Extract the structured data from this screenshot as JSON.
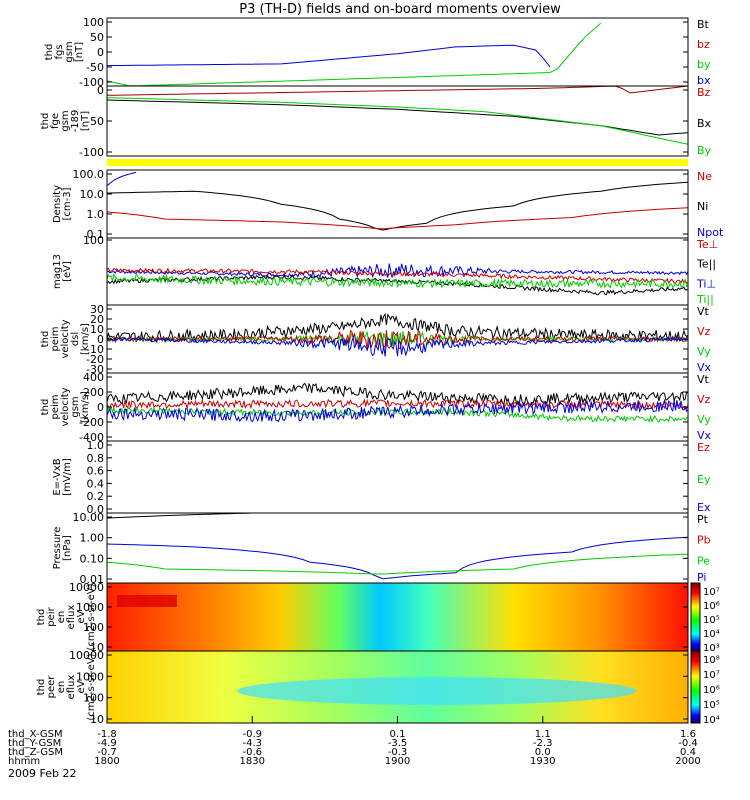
{
  "title": "P3 (TH-D) fields and on-board moments overview",
  "date_label": "2009 Feb 22",
  "colors": {
    "black": "#000000",
    "red": "#c80000",
    "green": "#00cc00",
    "blue": "#0000dd",
    "yellow": "#ffff00",
    "bz_red": "#a00000"
  },
  "footer": {
    "rows": [
      {
        "label": "thd_X-GSM",
        "values": [
          "-1.8",
          "-0.9",
          "0.1",
          "1.1",
          "1.6"
        ]
      },
      {
        "label": "thd_Y-GSM",
        "values": [
          "-4.9",
          "-4.3",
          "-3.5",
          "-2.3",
          "-0.4"
        ]
      },
      {
        "label": "thd_Z-GSM",
        "values": [
          "-0.7",
          "-0.6",
          "-0.3",
          "0.0",
          "0.4"
        ]
      },
      {
        "label": "hhmm",
        "values": [
          "1800",
          "1830",
          "1900",
          "1930",
          "2000"
        ]
      }
    ]
  },
  "chart_data": [
    {
      "type": "line",
      "ylabel": [
        "thd",
        "fgs",
        "gsm",
        "[nT]"
      ],
      "yticks": [
        "100",
        "50",
        "0",
        "-50",
        "-100"
      ],
      "ylim": [
        -100,
        100
      ],
      "legend": [
        {
          "text": "Bt",
          "color": "#000000"
        },
        {
          "text": "bz",
          "color": "#c80000"
        },
        {
          "text": "by",
          "color": "#00cc00"
        },
        {
          "text": "bx",
          "color": "#0000dd"
        }
      ],
      "series": [
        {
          "name": "bx",
          "color": "#0000dd",
          "x": [
            0,
            0.3,
            0.5,
            0.6,
            0.7,
            0.74,
            0.77
          ],
          "y": [
            -40,
            -35,
            -5,
            15,
            20,
            5,
            -60
          ]
        },
        {
          "name": "by",
          "color": "#00cc00",
          "x": [
            0,
            0.04,
            0.77,
            0.82,
            0.86
          ],
          "y": [
            -85,
            -100,
            -60,
            40,
            100
          ]
        }
      ]
    },
    {
      "type": "line",
      "ylabel": [
        "thd",
        "fge",
        "gsm",
        "-189",
        "[nT]"
      ],
      "yticks": [
        "0",
        "-50",
        "-100"
      ],
      "ylim": [
        -120,
        30
      ],
      "legend": [
        {
          "text": "Bz",
          "color": "#c80000"
        },
        {
          "text": "Bx",
          "color": "#000000"
        },
        {
          "text": "By",
          "color": "#00cc00"
        }
      ],
      "series": [
        {
          "name": "Bz",
          "color": "#a00000",
          "x": [
            0,
            0.25,
            0.5,
            0.75,
            0.88,
            0.9,
            1
          ],
          "y": [
            10,
            15,
            20,
            25,
            30,
            15,
            30
          ]
        },
        {
          "name": "Bx",
          "color": "#000000",
          "x": [
            0,
            0.3,
            0.5,
            0.7,
            0.85,
            0.95,
            1
          ],
          "y": [
            0,
            -10,
            -20,
            -35,
            -55,
            -75,
            -70
          ]
        },
        {
          "name": "By",
          "color": "#00cc00",
          "x": [
            0,
            0.3,
            0.5,
            0.65,
            0.75,
            0.85,
            1
          ],
          "y": [
            5,
            -5,
            -15,
            -25,
            -40,
            -55,
            -95
          ]
        }
      ]
    },
    {
      "type": "line",
      "ylabel": [
        "Density",
        "[cm-3]"
      ],
      "yticks": [
        "100.0",
        "10.0",
        "1.0",
        "0.1"
      ],
      "ylim": [
        0.05,
        200
      ],
      "log": true,
      "legend": [
        {
          "text": "Ne",
          "color": "#c80000"
        },
        {
          "text": "Ni",
          "color": "#000000"
        },
        {
          "text": "Npot",
          "color": "#0000dd"
        }
      ],
      "series": [
        {
          "name": "Ni",
          "color": "#000000",
          "x": [
            0,
            0.15,
            0.3,
            0.4,
            0.47,
            0.55,
            0.7,
            0.85,
            1
          ],
          "y": [
            12,
            15,
            3,
            0.5,
            0.12,
            0.3,
            2.5,
            15,
            45
          ]
        },
        {
          "name": "Ne",
          "color": "#c80000",
          "x": [
            0,
            0.1,
            0.3,
            0.47,
            0.6,
            0.8,
            1
          ],
          "y": [
            1.2,
            0.5,
            0.35,
            0.15,
            0.25,
            0.6,
            2
          ]
        },
        {
          "name": "Npot",
          "color": "#0000dd",
          "x": [
            0,
            0.05
          ],
          "y": [
            30,
            150
          ]
        }
      ]
    },
    {
      "type": "line",
      "ylabel": [
        "mag13",
        "[eV]"
      ],
      "yticks": [
        "100"
      ],
      "ylim": [
        0,
        1
      ],
      "legend": [
        {
          "text": "Te⊥",
          "color": "#c80000"
        },
        {
          "text": "Te||",
          "color": "#000000"
        },
        {
          "text": "Ti⊥",
          "color": "#0000dd"
        },
        {
          "text": "Ti||",
          "color": "#00cc00"
        }
      ],
      "series": [
        {
          "name": "Ti⊥",
          "color": "#0000dd",
          "x": [
            0,
            0.3,
            0.5,
            0.7,
            1
          ],
          "y": [
            0.5,
            0.45,
            0.52,
            0.5,
            0.48
          ],
          "noise": 0.12,
          "noise_x": [
            0.3,
            0.7
          ]
        },
        {
          "name": "Te⊥",
          "color": "#c80000",
          "x": [
            0,
            0.3,
            0.6,
            1
          ],
          "y": [
            0.52,
            0.5,
            0.45,
            0.35
          ],
          "noise": 0.03
        },
        {
          "name": "Te||",
          "color": "#000000",
          "x": [
            0,
            0.3,
            0.6,
            0.85,
            1
          ],
          "y": [
            0.35,
            0.42,
            0.32,
            0.18,
            0.25
          ],
          "noise": 0.03
        },
        {
          "name": "Ti||",
          "color": "#00cc00",
          "x": [
            0,
            0.3,
            0.6,
            1
          ],
          "y": [
            0.4,
            0.35,
            0.32,
            0.32
          ],
          "noise": 0.06
        }
      ]
    },
    {
      "type": "line",
      "ylabel": [
        "thd",
        "peim",
        "velocity",
        "dsl",
        "[km/s]"
      ],
      "yticks": [
        "30",
        "20",
        "10",
        "0",
        "-10",
        "-20",
        "-30"
      ],
      "ylim": [
        -35,
        35
      ],
      "legend": [
        {
          "text": "Vt",
          "color": "#000000"
        },
        {
          "text": "Vz",
          "color": "#c80000"
        },
        {
          "text": "Vy",
          "color": "#00cc00"
        },
        {
          "text": "Vx",
          "color": "#0000dd"
        }
      ],
      "series": [
        {
          "name": "Vt",
          "color": "#000000",
          "x": [
            0,
            0.2,
            0.4,
            0.48,
            0.6,
            0.8,
            1
          ],
          "y": [
            2,
            4,
            12,
            20,
            8,
            4,
            3
          ],
          "noise": 6
        },
        {
          "name": "Vy",
          "color": "#00cc00",
          "x": [
            0,
            0.5,
            1
          ],
          "y": [
            0,
            0,
            0
          ],
          "noise": 10,
          "noise_x": [
            0.3,
            0.65
          ]
        },
        {
          "name": "Vz",
          "color": "#c80000",
          "x": [
            0,
            0.5,
            1
          ],
          "y": [
            0,
            0,
            0
          ],
          "noise": 12,
          "noise_x": [
            0.3,
            0.65
          ]
        },
        {
          "name": "Vx",
          "color": "#0000dd",
          "x": [
            0,
            0.4,
            0.5,
            0.6,
            1
          ],
          "y": [
            0,
            -5,
            -10,
            -5,
            0
          ],
          "noise": 10,
          "noise_x": [
            0.3,
            0.65
          ]
        }
      ]
    },
    {
      "type": "line",
      "ylabel": [
        "thd",
        "peim",
        "velocity",
        "gsm",
        "[km/s]"
      ],
      "yticks": [
        "400",
        "200",
        "0",
        "-200",
        "-400"
      ],
      "ylim": [
        -450,
        450
      ],
      "legend": [
        {
          "text": "Vt",
          "color": "#000000"
        },
        {
          "text": "Vz",
          "color": "#c80000"
        },
        {
          "text": "Vy",
          "color": "#00cc00"
        },
        {
          "text": "Vx",
          "color": "#0000dd"
        }
      ],
      "series": [
        {
          "name": "Vt",
          "color": "#000000",
          "x": [
            0,
            0.2,
            0.35,
            0.5,
            0.7,
            1
          ],
          "y": [
            100,
            180,
            250,
            150,
            100,
            150
          ],
          "noise": 70
        },
        {
          "name": "Vy",
          "color": "#00cc00",
          "x": [
            0,
            0.3,
            0.6,
            0.8,
            1
          ],
          "y": [
            -40,
            -80,
            -60,
            -150,
            -160
          ],
          "noise": 40
        },
        {
          "name": "Vz",
          "color": "#c80000",
          "x": [
            0,
            0.5,
            1
          ],
          "y": [
            30,
            50,
            20
          ],
          "noise": 50
        },
        {
          "name": "Vx",
          "color": "#0000dd",
          "x": [
            0,
            0.3,
            0.6,
            1
          ],
          "y": [
            -80,
            -120,
            -30,
            20
          ],
          "noise": 80
        }
      ]
    },
    {
      "type": "line",
      "ylabel": [
        "E=-VxB",
        "[mV/m]"
      ],
      "yticks": [
        "1.0",
        "0.8",
        "0.6",
        "0.4",
        "0.2",
        "0.0"
      ],
      "ylim": [
        0,
        1
      ],
      "legend": [
        {
          "text": "Ez",
          "color": "#c80000"
        },
        {
          "text": "Ey",
          "color": "#00cc00"
        },
        {
          "text": "Ex",
          "color": "#0000dd"
        }
      ],
      "series": []
    },
    {
      "type": "line",
      "ylabel": [
        "Pressure",
        "[nPa]"
      ],
      "yticks": [
        "10.00",
        "1.00",
        "0.10",
        "0.01"
      ],
      "ylim": [
        0.003,
        40
      ],
      "log": true,
      "legend": [
        {
          "text": "Pt",
          "color": "#000000"
        },
        {
          "text": "Pb",
          "color": "#c80000"
        },
        {
          "text": "Pe",
          "color": "#00cc00"
        },
        {
          "text": "Pi",
          "color": "#0000dd"
        }
      ],
      "series": [
        {
          "name": "Pt",
          "color": "#000000",
          "x": [
            0,
            0.25
          ],
          "y": [
            20,
            40
          ]
        },
        {
          "name": "Pi",
          "color": "#0000dd",
          "x": [
            0,
            0.15,
            0.35,
            0.47,
            0.6,
            0.8,
            1
          ],
          "y": [
            0.6,
            0.4,
            0.05,
            0.005,
            0.012,
            0.2,
            1.5
          ]
        },
        {
          "name": "Pe",
          "color": "#00cc00",
          "x": [
            0,
            0.1,
            0.3,
            0.47,
            0.7,
            1
          ],
          "y": [
            0.05,
            0.02,
            0.015,
            0.01,
            0.02,
            0.15
          ]
        }
      ]
    },
    {
      "type": "heatmap",
      "ylabel": [
        "thd",
        "peir",
        "en",
        "eflux",
        "eV",
        "(cm2-s-sr-eV)"
      ],
      "yticks": [
        "10000",
        "1000",
        "100",
        "10"
      ],
      "colorbar": [
        "10⁷",
        "10⁶",
        "10⁵",
        "10⁴",
        "10³"
      ]
    },
    {
      "type": "heatmap",
      "ylabel": [
        "thd",
        "peer",
        "en",
        "eflux",
        "eV",
        "(cm2-s-sr-eV)"
      ],
      "yticks": [
        "10000",
        "1000",
        "100",
        "10"
      ],
      "colorbar": [
        "10⁸",
        "10⁷",
        "10⁶",
        "10⁵",
        "10⁴"
      ]
    }
  ]
}
